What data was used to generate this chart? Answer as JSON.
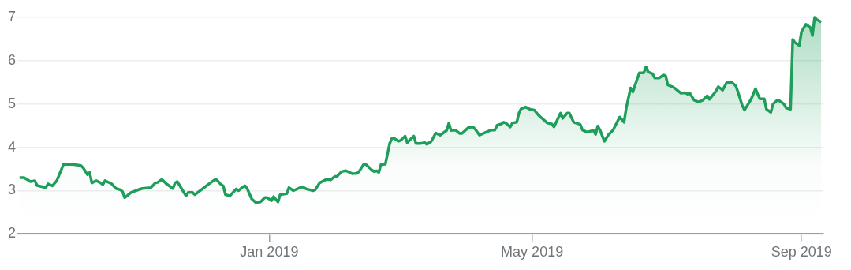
{
  "chart_data": {
    "type": "area",
    "xlim": [
      "2018-09-08",
      "2019-09-11"
    ],
    "xticks": [
      {
        "value": "2019-01-01",
        "label": "Jan 2019"
      },
      {
        "value": "2019-05-01",
        "label": "May 2019"
      },
      {
        "value": "2019-09-01",
        "label": "Sep 2019"
      }
    ],
    "ylim": [
      2,
      7
    ],
    "yticks": [
      2,
      3,
      4,
      5,
      6,
      7
    ],
    "grid": "y",
    "series": [
      {
        "color": "#1e9e5a",
        "x": [
          "2018-09-09",
          "2018-09-11",
          "2018-09-14",
          "2018-09-16",
          "2018-09-17",
          "2018-09-21",
          "2018-09-22",
          "2018-09-24",
          "2018-09-26",
          "2018-09-29",
          "2018-10-01",
          "2018-10-04",
          "2018-10-07",
          "2018-10-08",
          "2018-10-10",
          "2018-10-11",
          "2018-10-12",
          "2018-10-14",
          "2018-10-16",
          "2018-10-17",
          "2018-10-18",
          "2018-10-21",
          "2018-10-23",
          "2018-10-25",
          "2018-10-26",
          "2018-10-27",
          "2018-10-30",
          "2018-11-01",
          "2018-11-04",
          "2018-11-08",
          "2018-11-10",
          "2018-11-11",
          "2018-11-13",
          "2018-11-15",
          "2018-11-18",
          "2018-11-19",
          "2018-11-20",
          "2018-11-24",
          "2018-11-25",
          "2018-11-27",
          "2018-11-28",
          "2018-12-01",
          "2018-12-04",
          "2018-12-07",
          "2018-12-08",
          "2018-12-10",
          "2018-12-11",
          "2018-12-12",
          "2018-12-14",
          "2018-12-17",
          "2018-12-18",
          "2018-12-20",
          "2018-12-21",
          "2018-12-22",
          "2018-12-24",
          "2018-12-26",
          "2018-12-28",
          "2018-12-30",
          "2018-12-31",
          "2019-01-02",
          "2019-01-03",
          "2019-01-05",
          "2019-01-06",
          "2019-01-09",
          "2019-01-10",
          "2019-01-12",
          "2019-01-16",
          "2019-01-18",
          "2019-01-21",
          "2019-01-22",
          "2019-01-24",
          "2019-01-27",
          "2019-01-29",
          "2019-01-31",
          "2019-02-01",
          "2019-02-03",
          "2019-02-05",
          "2019-02-08",
          "2019-02-10",
          "2019-02-11",
          "2019-02-13",
          "2019-02-14",
          "2019-02-17",
          "2019-02-18",
          "2019-02-19",
          "2019-02-20",
          "2019-02-21",
          "2019-02-23",
          "2019-02-25",
          "2019-02-26",
          "2019-02-27",
          "2019-03-01",
          "2019-03-02",
          "2019-03-04",
          "2019-03-05",
          "2019-03-07",
          "2019-03-08",
          "2019-03-09",
          "2019-03-11",
          "2019-03-13",
          "2019-03-14",
          "2019-03-16",
          "2019-03-18",
          "2019-03-20",
          "2019-03-23",
          "2019-03-24",
          "2019-03-25",
          "2019-03-27",
          "2019-03-29",
          "2019-03-30",
          "2019-04-02",
          "2019-04-04",
          "2019-04-05",
          "2019-04-07",
          "2019-04-10",
          "2019-04-11",
          "2019-04-12",
          "2019-04-14",
          "2019-04-15",
          "2019-04-17",
          "2019-04-18",
          "2019-04-19",
          "2019-04-21",
          "2019-04-22",
          "2019-04-24",
          "2019-04-25",
          "2019-04-26",
          "2019-04-28",
          "2019-04-30",
          "2019-05-02",
          "2019-05-04",
          "2019-05-06",
          "2019-05-08",
          "2019-05-10",
          "2019-05-11",
          "2019-05-14",
          "2019-05-15",
          "2019-05-17",
          "2019-05-18",
          "2019-05-20",
          "2019-05-23",
          "2019-05-24",
          "2019-05-26",
          "2019-05-29",
          "2019-05-30",
          "2019-05-31",
          "2019-06-01",
          "2019-06-03",
          "2019-06-05",
          "2019-06-07",
          "2019-06-10",
          "2019-06-12",
          "2019-06-13",
          "2019-06-15",
          "2019-06-16",
          "2019-06-18",
          "2019-06-19",
          "2019-06-21",
          "2019-06-22",
          "2019-06-23",
          "2019-06-25",
          "2019-06-26",
          "2019-06-28",
          "2019-06-30",
          "2019-07-01",
          "2019-07-02",
          "2019-07-04",
          "2019-07-05",
          "2019-07-08",
          "2019-07-10",
          "2019-07-11",
          "2019-07-12",
          "2019-07-14",
          "2019-07-16",
          "2019-07-18",
          "2019-07-20",
          "2019-07-21",
          "2019-07-24",
          "2019-07-25",
          "2019-07-27",
          "2019-07-29",
          "2019-07-30",
          "2019-07-31",
          "2019-08-02",
          "2019-08-03",
          "2019-08-05",
          "2019-08-06",
          "2019-08-09",
          "2019-08-11",
          "2019-08-12",
          "2019-08-13",
          "2019-08-15",
          "2019-08-16",
          "2019-08-18",
          "2019-08-19",
          "2019-08-21",
          "2019-08-22",
          "2019-08-24",
          "2019-08-25",
          "2019-08-27",
          "2019-08-28",
          "2019-08-29",
          "2019-08-31",
          "2019-09-01",
          "2019-09-03",
          "2019-09-05",
          "2019-09-06",
          "2019-09-07",
          "2019-09-08",
          "2019-09-10"
        ],
        "values": [
          3.3,
          3.3,
          3.21,
          3.23,
          3.12,
          3.07,
          3.16,
          3.11,
          3.23,
          3.6,
          3.61,
          3.6,
          3.58,
          3.53,
          3.37,
          3.42,
          3.18,
          3.23,
          3.18,
          3.14,
          3.23,
          3.16,
          3.05,
          3.02,
          2.98,
          2.84,
          2.96,
          3.0,
          3.05,
          3.07,
          3.18,
          3.19,
          3.26,
          3.16,
          3.05,
          3.18,
          3.21,
          2.88,
          2.96,
          2.96,
          2.91,
          3.02,
          3.14,
          3.25,
          3.25,
          3.14,
          3.11,
          2.91,
          2.88,
          3.04,
          3.0,
          3.09,
          3.11,
          3.04,
          2.81,
          2.72,
          2.74,
          2.84,
          2.84,
          2.77,
          2.86,
          2.74,
          2.91,
          2.93,
          3.07,
          3.0,
          3.09,
          3.04,
          3.0,
          3.02,
          3.18,
          3.26,
          3.25,
          3.33,
          3.33,
          3.44,
          3.46,
          3.39,
          3.4,
          3.44,
          3.6,
          3.61,
          3.47,
          3.44,
          3.46,
          3.42,
          3.6,
          3.61,
          4.09,
          4.21,
          4.21,
          4.14,
          4.16,
          4.26,
          4.11,
          4.21,
          4.26,
          4.09,
          4.09,
          4.11,
          4.07,
          4.14,
          4.33,
          4.28,
          4.39,
          4.56,
          4.39,
          4.4,
          4.32,
          4.32,
          4.46,
          4.47,
          4.42,
          4.28,
          4.35,
          4.37,
          4.4,
          4.4,
          4.51,
          4.54,
          4.58,
          4.56,
          4.47,
          4.56,
          4.58,
          4.79,
          4.89,
          4.93,
          4.88,
          4.86,
          4.74,
          4.65,
          4.56,
          4.54,
          4.47,
          4.79,
          4.67,
          4.79,
          4.79,
          4.58,
          4.53,
          4.4,
          4.35,
          4.39,
          4.3,
          4.49,
          4.4,
          4.14,
          4.3,
          4.4,
          4.7,
          4.58,
          4.91,
          5.37,
          5.28,
          5.58,
          5.72,
          5.72,
          5.86,
          5.74,
          5.7,
          5.6,
          5.6,
          5.67,
          5.65,
          5.44,
          5.4,
          5.37,
          5.25,
          5.26,
          5.23,
          5.25,
          5.09,
          5.05,
          5.09,
          5.19,
          5.11,
          5.3,
          5.4,
          5.32,
          5.51,
          5.49,
          5.51,
          5.42,
          5.28,
          4.96,
          4.86,
          5.11,
          5.35,
          5.23,
          5.12,
          5.12,
          4.88,
          4.81,
          5.0,
          5.09,
          5.07,
          5.0,
          4.91,
          4.88,
          6.49,
          6.42,
          6.35,
          6.67,
          6.84,
          6.77,
          6.58,
          7.0,
          6.95,
          6.89
        ]
      }
    ]
  }
}
